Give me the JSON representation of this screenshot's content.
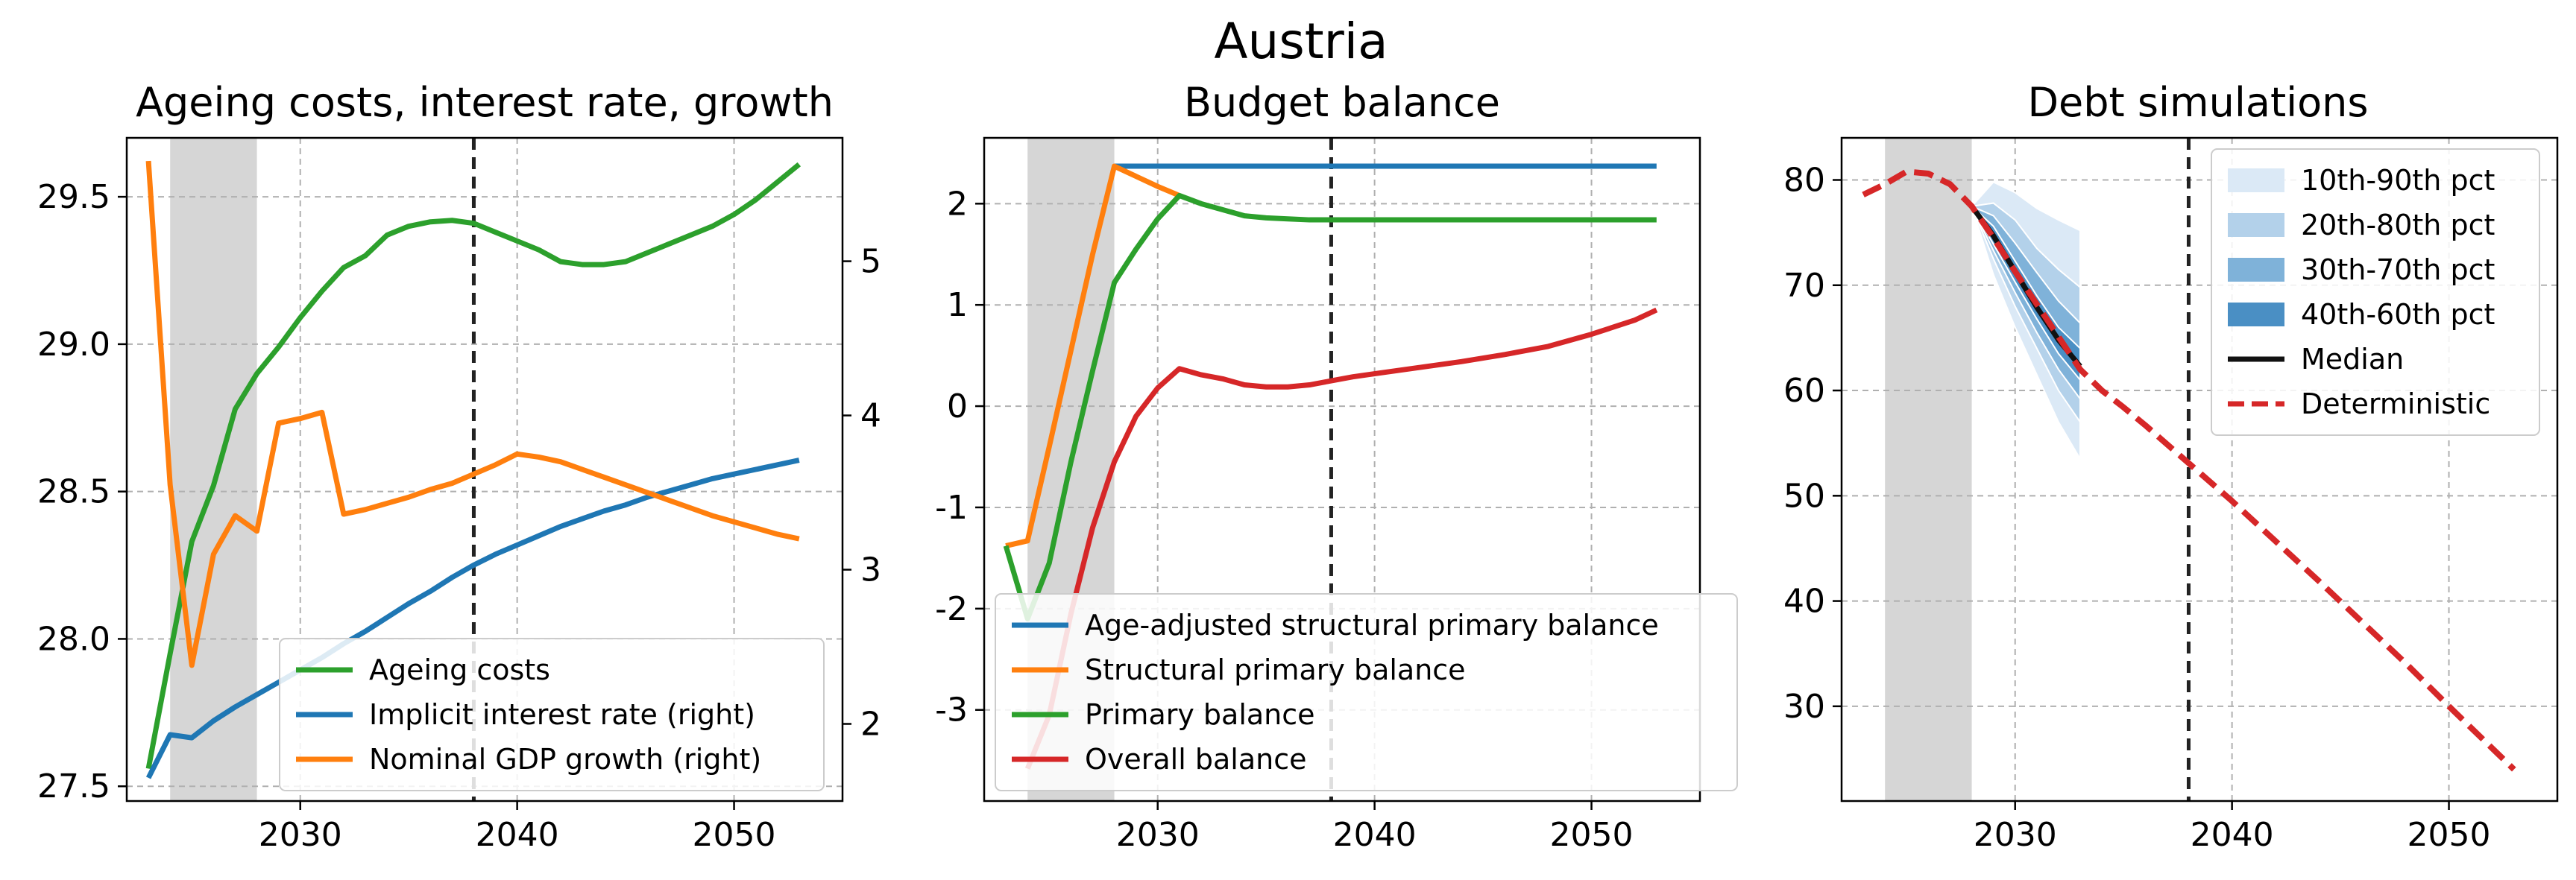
{
  "figure_title": "Austria",
  "colors": {
    "green": "#2ca02c",
    "blue": "#1f77b4",
    "orange": "#ff7f0e",
    "red": "#d62728",
    "median": "#111111",
    "deterministic": "#d62728",
    "shade": "#cccccc",
    "band10_90": "#dbe9f6",
    "band20_80": "#b3d1ea",
    "band30_70": "#7fb2d9",
    "band40_60": "#4a8fc4"
  },
  "chart_data": [
    {
      "type": "line",
      "title": "Ageing costs, interest rate, growth",
      "xlim": [
        2022,
        2055
      ],
      "ylim": [
        27.45,
        29.7
      ],
      "y2lim": [
        1.5,
        5.8
      ],
      "xticks": [
        "2030",
        "2040",
        "2050"
      ],
      "xtick_values": [
        2030,
        2040,
        2050
      ],
      "yticks": [
        "27.5",
        "28.0",
        "28.5",
        "29.0",
        "29.5"
      ],
      "ytick_values": [
        27.5,
        28.0,
        28.5,
        29.0,
        29.5
      ],
      "y2ticks": [
        "2",
        "3",
        "4",
        "5"
      ],
      "y2tick_values": [
        2,
        3,
        4,
        5
      ],
      "grid": true,
      "legend_position": "lower-right",
      "shaded_x": [
        2024,
        2028
      ],
      "vline_x": 2038,
      "series": [
        {
          "name": "Ageing costs",
          "color_key": "green",
          "axis": "left",
          "points": [
            [
              2023,
              27.56
            ],
            [
              2024,
              27.95
            ],
            [
              2025,
              28.33
            ],
            [
              2026,
              28.52
            ],
            [
              2027,
              28.78
            ],
            [
              2028,
              28.9
            ],
            [
              2029,
              28.99
            ],
            [
              2030,
              29.09
            ],
            [
              2031,
              29.18
            ],
            [
              2032,
              29.26
            ],
            [
              2033,
              29.3
            ],
            [
              2034,
              29.37
            ],
            [
              2035,
              29.4
            ],
            [
              2036,
              29.415
            ],
            [
              2037,
              29.42
            ],
            [
              2038,
              29.41
            ],
            [
              2039,
              29.38
            ],
            [
              2040,
              29.35
            ],
            [
              2041,
              29.32
            ],
            [
              2042,
              29.28
            ],
            [
              2043,
              29.27
            ],
            [
              2044,
              29.27
            ],
            [
              2045,
              29.28
            ],
            [
              2046,
              29.31
            ],
            [
              2047,
              29.34
            ],
            [
              2048,
              29.37
            ],
            [
              2049,
              29.4
            ],
            [
              2050,
              29.44
            ],
            [
              2051,
              29.49
            ],
            [
              2052,
              29.55
            ],
            [
              2053,
              29.61
            ]
          ]
        },
        {
          "name": "Implicit interest rate (right)",
          "color_key": "blue",
          "axis": "right",
          "points": [
            [
              2023,
              1.65
            ],
            [
              2024,
              1.93
            ],
            [
              2025,
              1.91
            ],
            [
              2026,
              2.02
            ],
            [
              2027,
              2.11
            ],
            [
              2028,
              2.19
            ],
            [
              2029,
              2.27
            ],
            [
              2030,
              2.35
            ],
            [
              2031,
              2.43
            ],
            [
              2032,
              2.52
            ],
            [
              2033,
              2.6
            ],
            [
              2034,
              2.69
            ],
            [
              2035,
              2.78
            ],
            [
              2036,
              2.86
            ],
            [
              2037,
              2.95
            ],
            [
              2038,
              3.03
            ],
            [
              2039,
              3.1
            ],
            [
              2040,
              3.16
            ],
            [
              2041,
              3.22
            ],
            [
              2042,
              3.28
            ],
            [
              2043,
              3.33
            ],
            [
              2044,
              3.38
            ],
            [
              2045,
              3.42
            ],
            [
              2046,
              3.47
            ],
            [
              2047,
              3.51
            ],
            [
              2048,
              3.55
            ],
            [
              2049,
              3.59
            ],
            [
              2050,
              3.62
            ],
            [
              2051,
              3.65
            ],
            [
              2052,
              3.68
            ],
            [
              2053,
              3.71
            ]
          ]
        },
        {
          "name": "Nominal GDP growth (right)",
          "color_key": "orange",
          "axis": "right",
          "points": [
            [
              2023,
              5.65
            ],
            [
              2024,
              3.55
            ],
            [
              2025,
              2.38
            ],
            [
              2026,
              3.1
            ],
            [
              2027,
              3.35
            ],
            [
              2028,
              3.25
            ],
            [
              2029,
              3.95
            ],
            [
              2030,
              3.98
            ],
            [
              2031,
              4.02
            ],
            [
              2032,
              3.36
            ],
            [
              2033,
              3.39
            ],
            [
              2034,
              3.43
            ],
            [
              2035,
              3.47
            ],
            [
              2036,
              3.52
            ],
            [
              2037,
              3.56
            ],
            [
              2038,
              3.62
            ],
            [
              2039,
              3.68
            ],
            [
              2040,
              3.75
            ],
            [
              2041,
              3.73
            ],
            [
              2042,
              3.7
            ],
            [
              2043,
              3.65
            ],
            [
              2044,
              3.6
            ],
            [
              2045,
              3.55
            ],
            [
              2046,
              3.5
            ],
            [
              2047,
              3.45
            ],
            [
              2048,
              3.4
            ],
            [
              2049,
              3.35
            ],
            [
              2050,
              3.31
            ],
            [
              2051,
              3.27
            ],
            [
              2052,
              3.23
            ],
            [
              2053,
              3.2
            ]
          ]
        }
      ]
    },
    {
      "type": "line",
      "title": "Budget balance",
      "xlim": [
        2022,
        2055
      ],
      "ylim": [
        -3.9,
        2.65
      ],
      "xticks": [
        "2030",
        "2040",
        "2050"
      ],
      "xtick_values": [
        2030,
        2040,
        2050
      ],
      "yticks": [
        "-3",
        "-2",
        "-1",
        "0",
        "1",
        "2"
      ],
      "ytick_values": [
        -3,
        -2,
        -1,
        0,
        1,
        2
      ],
      "grid": true,
      "legend_position": "lower-right",
      "shaded_x": [
        2024,
        2028
      ],
      "vline_x": 2038,
      "series": [
        {
          "name": "Age-adjusted structural primary balance",
          "color_key": "blue",
          "points": [
            [
              2028,
              2.37
            ],
            [
              2053,
              2.37
            ]
          ]
        },
        {
          "name": "Structural primary balance",
          "color_key": "orange",
          "points": [
            [
              2023,
              -1.38
            ],
            [
              2024,
              -1.33
            ],
            [
              2025,
              -0.4
            ],
            [
              2026,
              0.55
            ],
            [
              2027,
              1.5
            ],
            [
              2028,
              2.37
            ],
            [
              2029,
              2.27
            ],
            [
              2030,
              2.17
            ],
            [
              2031,
              2.08
            ]
          ]
        },
        {
          "name": "Primary balance",
          "color_key": "green",
          "points": [
            [
              2023,
              -1.38
            ],
            [
              2024,
              -2.1
            ],
            [
              2025,
              -1.55
            ],
            [
              2026,
              -0.55
            ],
            [
              2027,
              0.35
            ],
            [
              2028,
              1.22
            ],
            [
              2029,
              1.55
            ],
            [
              2030,
              1.85
            ],
            [
              2031,
              2.08
            ],
            [
              2032,
              2.0
            ],
            [
              2033,
              1.94
            ],
            [
              2034,
              1.88
            ],
            [
              2035,
              1.86
            ],
            [
              2036,
              1.85
            ],
            [
              2037,
              1.84
            ],
            [
              2038,
              1.84
            ],
            [
              2053,
              1.84
            ]
          ]
        },
        {
          "name": "Overall balance",
          "color_key": "red",
          "points": [
            [
              2024,
              -3.58
            ],
            [
              2025,
              -3.05
            ],
            [
              2026,
              -2.05
            ],
            [
              2027,
              -1.2
            ],
            [
              2028,
              -0.55
            ],
            [
              2029,
              -0.1
            ],
            [
              2030,
              0.18
            ],
            [
              2031,
              0.37
            ],
            [
              2032,
              0.31
            ],
            [
              2033,
              0.27
            ],
            [
              2034,
              0.21
            ],
            [
              2035,
              0.19
            ],
            [
              2036,
              0.19
            ],
            [
              2037,
              0.21
            ],
            [
              2038,
              0.25
            ],
            [
              2039,
              0.29
            ],
            [
              2040,
              0.32
            ],
            [
              2042,
              0.38
            ],
            [
              2044,
              0.44
            ],
            [
              2046,
              0.51
            ],
            [
              2048,
              0.59
            ],
            [
              2050,
              0.71
            ],
            [
              2052,
              0.85
            ],
            [
              2053,
              0.95
            ]
          ]
        }
      ]
    },
    {
      "type": "line",
      "title": "Debt simulations",
      "xlim": [
        2022,
        2055
      ],
      "ylim": [
        21,
        84
      ],
      "xticks": [
        "2030",
        "2040",
        "2050"
      ],
      "xtick_values": [
        2030,
        2040,
        2050
      ],
      "yticks": [
        "30",
        "40",
        "50",
        "60",
        "70",
        "80"
      ],
      "ytick_values": [
        30,
        40,
        50,
        60,
        70,
        80
      ],
      "grid": true,
      "legend_position": "upper-right",
      "shaded_x": [
        2024,
        2028
      ],
      "vline_x": 2038,
      "bands": [
        {
          "name": "10th-90th pct",
          "color_key": "band10_90",
          "x": [
            2028,
            2029,
            2030,
            2031,
            2032,
            2033
          ],
          "low": [
            77.5,
            71.0,
            66.0,
            61.5,
            57.0,
            53.5
          ],
          "high": [
            77.5,
            79.8,
            78.8,
            77.3,
            76.2,
            75.2
          ]
        },
        {
          "name": "20th-80th pct",
          "color_key": "band20_80",
          "x": [
            2028,
            2029,
            2030,
            2031,
            2032,
            2033
          ],
          "low": [
            77.5,
            72.5,
            68.0,
            64.0,
            60.0,
            57.0
          ],
          "high": [
            77.5,
            77.8,
            76.2,
            73.5,
            71.5,
            69.8
          ]
        },
        {
          "name": "30th-70th pct",
          "color_key": "band30_70",
          "x": [
            2028,
            2029,
            2030,
            2031,
            2032,
            2033
          ],
          "low": [
            77.5,
            73.3,
            69.3,
            65.5,
            62.0,
            59.2
          ],
          "high": [
            77.5,
            76.6,
            74.0,
            71.2,
            68.5,
            66.4
          ]
        },
        {
          "name": "40th-60th pct",
          "color_key": "band40_60",
          "x": [
            2028,
            2029,
            2030,
            2031,
            2032,
            2033
          ],
          "low": [
            77.5,
            73.9,
            70.3,
            66.8,
            63.5,
            61.0
          ],
          "high": [
            77.5,
            75.6,
            72.3,
            69.0,
            66.0,
            64.0
          ]
        }
      ],
      "series": [
        {
          "name": "Median",
          "color_key": "median",
          "dashed": false,
          "points": [
            [
              2028,
              77.5
            ],
            [
              2029,
              74.7
            ],
            [
              2030,
              71.3
            ],
            [
              2031,
              67.9
            ],
            [
              2032,
              64.8
            ],
            [
              2033,
              62.3
            ]
          ]
        },
        {
          "name": "Deterministic",
          "color_key": "deterministic",
          "dashed": true,
          "points": [
            [
              2023,
              78.6
            ],
            [
              2024,
              79.6
            ],
            [
              2025,
              80.8
            ],
            [
              2026,
              80.6
            ],
            [
              2027,
              79.6
            ],
            [
              2028,
              77.5
            ],
            [
              2029,
              74.5
            ],
            [
              2030,
              71.3
            ],
            [
              2031,
              68.2
            ],
            [
              2032,
              65.1
            ],
            [
              2033,
              62.0
            ],
            [
              2034,
              60.0
            ],
            [
              2035,
              58.4
            ],
            [
              2036,
              56.7
            ],
            [
              2037,
              54.9
            ],
            [
              2038,
              53.1
            ],
            [
              2040,
              49.5
            ],
            [
              2042,
              45.7
            ],
            [
              2044,
              41.9
            ],
            [
              2046,
              38.0
            ],
            [
              2048,
              34.1
            ],
            [
              2050,
              30.0
            ],
            [
              2052,
              26.0
            ],
            [
              2053,
              24.0
            ]
          ]
        }
      ]
    }
  ]
}
